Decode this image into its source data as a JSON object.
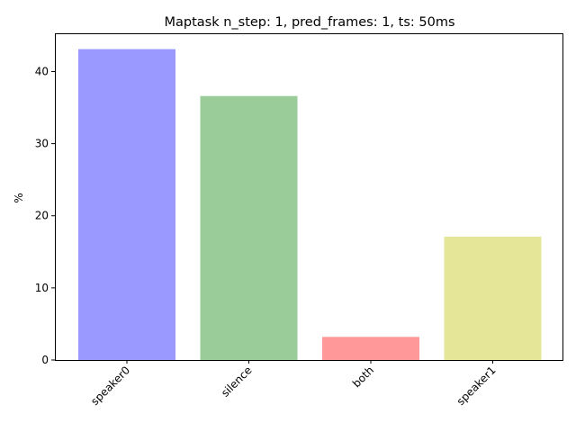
{
  "chart_data": {
    "type": "bar",
    "title": "Maptask n_step: 1, pred_frames: 1, ts: 50ms",
    "xlabel": "",
    "ylabel": "%",
    "categories": [
      "speaker0",
      "silence",
      "both",
      "speaker1"
    ],
    "values": [
      43.1,
      36.6,
      3.2,
      17.1
    ],
    "colors": [
      "#9999ff",
      "#99cc99",
      "#ff9999",
      "#e6e699"
    ],
    "ylim": [
      0,
      45.3
    ],
    "yticks": [
      0,
      10,
      20,
      30,
      40
    ],
    "xtick_rotation": 45,
    "grid": false,
    "legend": "none"
  }
}
